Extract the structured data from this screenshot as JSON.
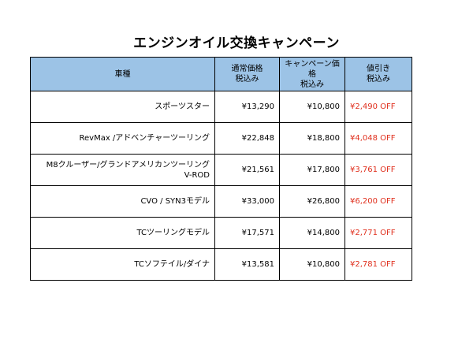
{
  "title": "エンジンオイル交換キャンペーン",
  "table": {
    "headers": [
      {
        "line1": "車種",
        "line2": ""
      },
      {
        "line1": "通常価格",
        "line2": "税込み"
      },
      {
        "line1": "キャンペーン価格",
        "line2": "税込み"
      },
      {
        "line1": "値引き",
        "line2": "税込み"
      }
    ],
    "rows": [
      {
        "model": "スポーツスター",
        "model_line2": "",
        "regular": "¥13,290",
        "campaign": "¥10,800",
        "discount": "¥2,490 OFF"
      },
      {
        "model": "RevMax /アドベンチャーツーリング",
        "model_line2": "",
        "regular": "¥22,848",
        "campaign": "¥18,800",
        "discount": "¥4,048 OFF"
      },
      {
        "model": "M8クルーザー/グランドアメリカンツーリング",
        "model_line2": "V-ROD",
        "regular": "¥21,561",
        "campaign": "¥17,800",
        "discount": "¥3,761 OFF"
      },
      {
        "model": "CVO / SYN3モデル",
        "model_line2": "",
        "regular": "¥33,000",
        "campaign": "¥26,800",
        "discount": "¥6,200 OFF"
      },
      {
        "model": "TCツーリングモデル",
        "model_line2": "",
        "regular": "¥17,571",
        "campaign": "¥14,800",
        "discount": "¥2,771 OFF"
      },
      {
        "model": "TCソフテイル/ダイナ",
        "model_line2": "",
        "regular": "¥13,581",
        "campaign": "¥10,800",
        "discount": "¥2,781 OFF"
      }
    ]
  },
  "colors": {
    "header_bg": "#9cc3e6",
    "discount_text": "#e0301e"
  }
}
